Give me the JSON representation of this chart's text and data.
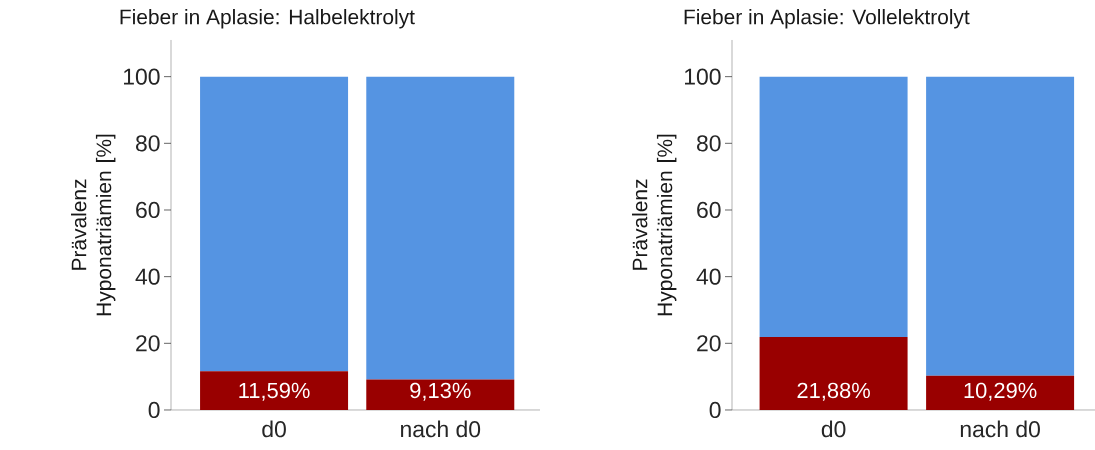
{
  "chart_data": [
    {
      "type": "bar",
      "stacked": true,
      "title": "Fieber in Aplasie: Halbelektrolyt",
      "ylabel": "Prävalenz Hyponatriämien [%]",
      "categories": [
        "d0",
        "nach d0"
      ],
      "ylim": [
        0,
        111
      ],
      "yticks": [
        0,
        20,
        40,
        60,
        80,
        100
      ],
      "series": [
        {
          "color": "#990000",
          "values": [
            11.59,
            9.13
          ],
          "value_labels": [
            "11,59%",
            "9,13%"
          ]
        },
        {
          "color": "#5594e2",
          "values": [
            88.41,
            90.87
          ]
        }
      ]
    },
    {
      "type": "bar",
      "stacked": true,
      "title": "Fieber in Aplasie: Vollelektrolyt",
      "ylabel": "Prävalenz Hyponatriämien [%]",
      "categories": [
        "d0",
        "nach d0"
      ],
      "ylim": [
        0,
        111
      ],
      "yticks": [
        0,
        20,
        40,
        60,
        80,
        100
      ],
      "series": [
        {
          "color": "#990000",
          "values": [
            21.88,
            10.29
          ],
          "value_labels": [
            "21,88%",
            "10,29%"
          ]
        },
        {
          "color": "#5594e2",
          "values": [
            78.12,
            89.71
          ]
        }
      ]
    }
  ]
}
